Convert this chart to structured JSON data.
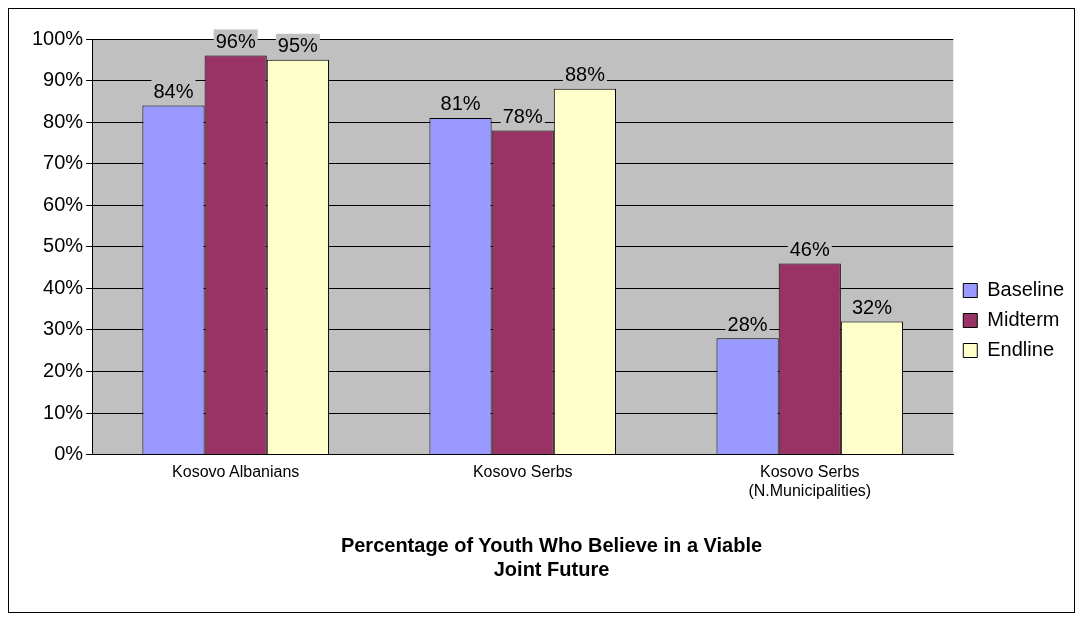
{
  "chart_data": {
    "type": "bar",
    "title": "Percentage of Youth Who Believe in a Viable Joint Future",
    "categories": [
      "Kosovo Albanians",
      "Kosovo Serbs",
      "Kosovo Serbs (N.Municipalities)"
    ],
    "series": [
      {
        "name": "Baseline",
        "color": "#9999ff",
        "values": [
          84,
          81,
          28
        ],
        "value_labels": [
          "84%",
          "81%",
          "28%"
        ]
      },
      {
        "name": "Midterm",
        "color": "#993366",
        "values": [
          96,
          78,
          46
        ],
        "value_labels": [
          "96%",
          "78%",
          "46%"
        ]
      },
      {
        "name": "Endline",
        "color": "#ffffcc",
        "values": [
          95,
          88,
          32
        ],
        "value_labels": [
          "95%",
          "88%",
          "32%"
        ]
      }
    ],
    "ylim": [
      0,
      100
    ],
    "yticks": [
      {
        "value": 0,
        "label": "0%"
      },
      {
        "value": 10,
        "label": "10%"
      },
      {
        "value": 20,
        "label": "20%"
      },
      {
        "value": 30,
        "label": "30%"
      },
      {
        "value": 40,
        "label": "40%"
      },
      {
        "value": 50,
        "label": "50%"
      },
      {
        "value": 60,
        "label": "60%"
      },
      {
        "value": 70,
        "label": "70%"
      },
      {
        "value": 80,
        "label": "80%"
      },
      {
        "value": 90,
        "label": "90%"
      },
      {
        "value": 100,
        "label": "100%"
      }
    ],
    "grid": "y",
    "legend": "right"
  }
}
